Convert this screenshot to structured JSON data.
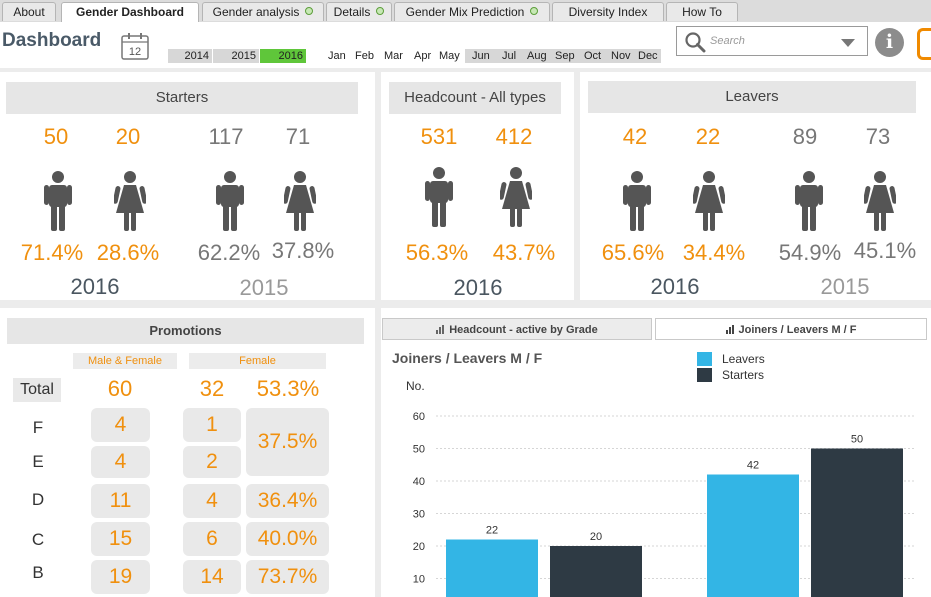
{
  "tabs": [
    {
      "label": "About",
      "active": false,
      "dot": false
    },
    {
      "label": "Gender Dashboard",
      "active": true,
      "dot": false
    },
    {
      "label": "Gender analysis",
      "active": false,
      "dot": true
    },
    {
      "label": "Details",
      "active": false,
      "dot": true
    },
    {
      "label": "Gender Mix Prediction",
      "active": false,
      "dot": true
    },
    {
      "label": "Diversity Index",
      "active": false,
      "dot": false
    },
    {
      "label": "How To",
      "active": false,
      "dot": false
    }
  ],
  "header": {
    "title": "Dashboard",
    "calendar_day": "12",
    "years": [
      {
        "label": "2014",
        "selected": false
      },
      {
        "label": "2015",
        "selected": false
      },
      {
        "label": "2016",
        "selected": true
      }
    ],
    "months": [
      {
        "label": "Jan",
        "selected": false
      },
      {
        "label": "Feb",
        "selected": false
      },
      {
        "label": "Mar",
        "selected": false
      },
      {
        "label": "Apr",
        "selected": false
      },
      {
        "label": "May",
        "selected": false
      },
      {
        "label": "Jun",
        "selected": true
      },
      {
        "label": "Jul",
        "selected": true
      },
      {
        "label": "Aug",
        "selected": true
      },
      {
        "label": "Sep",
        "selected": true
      },
      {
        "label": "Oct",
        "selected": true
      },
      {
        "label": "Nov",
        "selected": true
      },
      {
        "label": "Dec",
        "selected": true
      }
    ],
    "search_placeholder": "Search",
    "info_glyph": "i"
  },
  "starters": {
    "title": "Starters",
    "current": {
      "year": "2016",
      "male": "50",
      "female": "20",
      "male_pct": "71.4%",
      "female_pct": "28.6%"
    },
    "previous": {
      "year": "2015",
      "male": "117",
      "female": "71",
      "male_pct": "62.2%",
      "female_pct": "37.8%"
    }
  },
  "headcount": {
    "title": "Headcount - All types",
    "current": {
      "year": "2016",
      "male": "531",
      "female": "412",
      "male_pct": "56.3%",
      "female_pct": "43.7%"
    }
  },
  "leavers": {
    "title": "Leavers",
    "current": {
      "year": "2016",
      "male": "42",
      "female": "22",
      "male_pct": "65.6%",
      "female_pct": "34.4%"
    },
    "previous": {
      "year": "2015",
      "male": "89",
      "female": "73",
      "male_pct": "54.9%",
      "female_pct": "45.1%"
    }
  },
  "promotions": {
    "title": "Promotions",
    "col_mf": "Male & Female",
    "col_f": "Female",
    "total_label": "Total",
    "total_mf": "60",
    "total_f": "32",
    "total_pct": "53.3%",
    "rows": [
      {
        "grade": "F",
        "mf": "4",
        "f": "1"
      },
      {
        "grade": "E",
        "mf": "4",
        "f": "2"
      },
      {
        "grade": "D",
        "mf": "11",
        "f": "4"
      },
      {
        "grade": "C",
        "mf": "15",
        "f": "6"
      },
      {
        "grade": "B",
        "mf": "19",
        "f": "14"
      }
    ],
    "pcts": [
      "37.5%",
      "36.4%",
      "40.0%",
      "73.7%"
    ]
  },
  "chart_tabs": [
    "Headcount - active by Grade",
    "Joiners / Leavers M / F"
  ],
  "chart_data": {
    "type": "bar",
    "title": "Joiners / Leavers M / F",
    "ylabel": "No.",
    "ylim": [
      0,
      60
    ],
    "yticks": [
      10,
      20,
      30,
      40,
      50,
      60
    ],
    "legend": "top-center",
    "categories": [
      "",
      ""
    ],
    "series": [
      {
        "name": "Leavers",
        "color": "#33b5e5",
        "values": [
          22,
          42
        ]
      },
      {
        "name": "Starters",
        "color": "#2e3a44",
        "values": [
          20,
          50
        ]
      }
    ]
  },
  "colors": {
    "accent": "#f0900e",
    "selected_year": "#5fc63a",
    "leavers": "#33b5e5",
    "starters": "#2e3a44"
  }
}
